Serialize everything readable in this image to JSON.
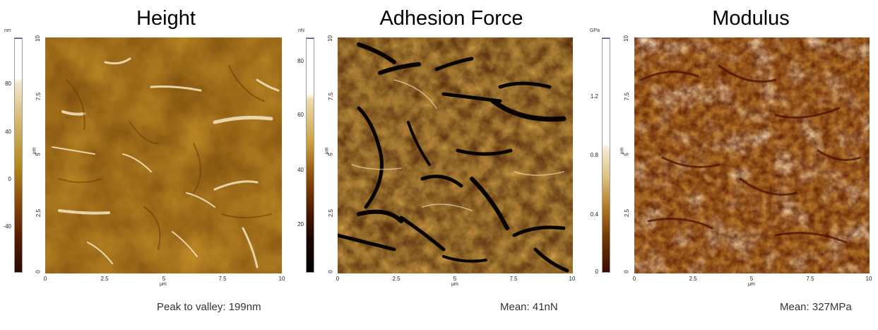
{
  "panels": [
    {
      "title": "Height",
      "colorbar_unit": "nm",
      "colorbar_ticks": [
        "80",
        "40",
        "0",
        "-40"
      ],
      "y_ticks": [
        "10",
        "7.5",
        "5",
        "2.5",
        "0"
      ],
      "x_ticks": [
        "0",
        "2.5",
        "5",
        "7.5",
        "10"
      ],
      "axis_unit": "μm",
      "stat": "Peak to valley: 199nm",
      "colors": {
        "low": "#3a1000",
        "mid": "#b07a10",
        "high": "#f5edd8"
      }
    },
    {
      "title": "Adhesion Force",
      "colorbar_unit": "nN",
      "colorbar_ticks": [
        "80",
        "60",
        "40",
        "20"
      ],
      "y_ticks": [
        "10",
        "7.5",
        "5",
        "2.5",
        "0"
      ],
      "x_ticks": [
        "0",
        "2.5",
        "5",
        "7.5",
        "10"
      ],
      "axis_unit": "μm",
      "stat": "Mean: 41nN",
      "colors": {
        "low": "#000000",
        "mid": "#9a6a10",
        "high": "#f5ecd5"
      }
    },
    {
      "title": "Modulus",
      "colorbar_unit": "GPa",
      "colorbar_ticks": [
        "1.2",
        "0.8",
        "0.4",
        "0"
      ],
      "y_ticks": [
        "10",
        "7.5",
        "5",
        "2.5",
        "0"
      ],
      "x_ticks": [
        "0",
        "2.5",
        "5",
        "7.5",
        "10"
      ],
      "axis_unit": "μm",
      "stat": "Mean: 327MPa",
      "colors": {
        "low": "#4a0e00",
        "mid": "#a05a10",
        "high": "#fbf2e2"
      }
    }
  ]
}
